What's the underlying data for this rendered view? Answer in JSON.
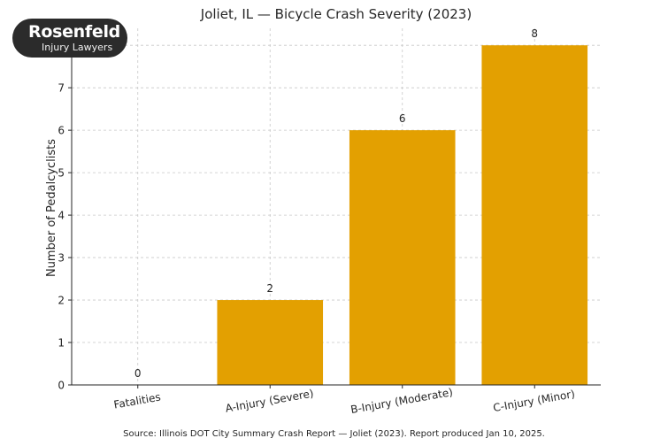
{
  "logo": {
    "brand": "Rosenfeld",
    "tagline": "Injury Lawyers"
  },
  "source": "Source: Illinois DOT City Summary Crash Report — Joliet (2023). Report produced Jan 10, 2025.",
  "colors": {
    "bar": "#E3A001",
    "grid": "#c8c8c8",
    "axis": "#262626"
  },
  "chart_data": {
    "type": "bar",
    "title": "Joliet, IL — Bicycle Crash Severity (2023)",
    "xlabel": "",
    "ylabel": "Number of Pedalcyclists",
    "categories": [
      "Fatalities",
      "A-Injury (Severe)",
      "B-Injury (Moderate)",
      "C-Injury (Minor)"
    ],
    "values": [
      0,
      2,
      6,
      8
    ],
    "data_labels": [
      "0",
      "2",
      "6",
      "8"
    ],
    "ylim": [
      0,
      8.4
    ],
    "yticks": [
      0,
      1,
      2,
      3,
      4,
      5,
      6,
      7,
      8
    ],
    "grid": true,
    "legend": null
  }
}
